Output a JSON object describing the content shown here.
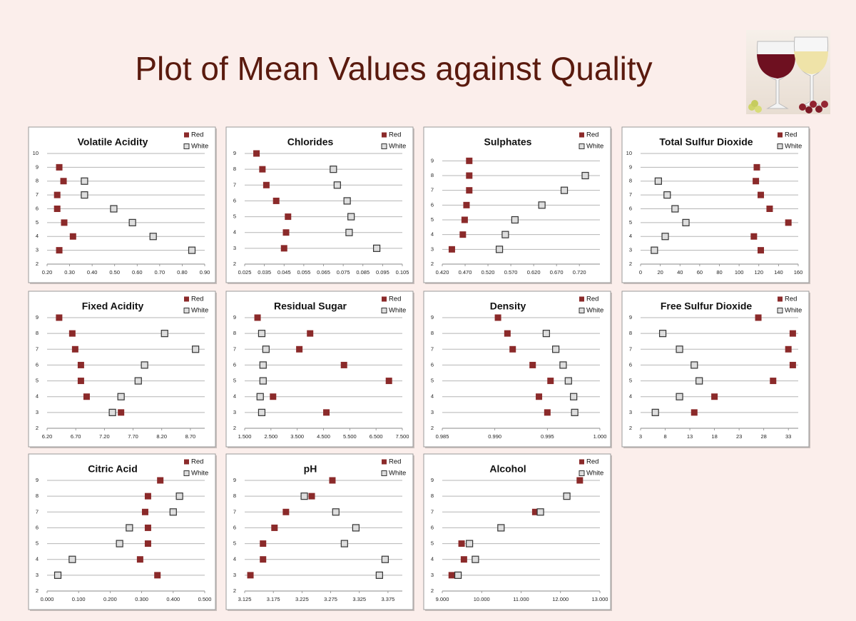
{
  "title": "Plot of Mean Values against Quality",
  "chart_data": [
    {
      "type": "scatter",
      "title": "Volatile Acidity",
      "grid": true,
      "xlim": [
        0.2,
        0.9
      ],
      "ylim": [
        2,
        10
      ],
      "xticks": [
        {
          "value": 0.2,
          "label": "0.20"
        },
        {
          "value": 0.3,
          "label": "0.30"
        },
        {
          "value": 0.4,
          "label": "0.40"
        },
        {
          "value": 0.5,
          "label": "0.50"
        },
        {
          "value": 0.6,
          "label": "0.60"
        },
        {
          "value": 0.7,
          "label": "0.70"
        },
        {
          "value": 0.8,
          "label": "0.80"
        },
        {
          "value": 0.9,
          "label": "0.90"
        }
      ],
      "yticks": [
        2,
        3,
        4,
        5,
        6,
        7,
        8,
        9,
        10
      ],
      "series": [
        {
          "name": "Red",
          "color": "#8b2a2a",
          "x": [
            0.254,
            0.273,
            0.245,
            0.245,
            0.276,
            0.315,
            0.254
          ],
          "values": [
            9,
            8,
            7,
            6,
            5,
            4,
            3
          ]
        },
        {
          "name": "White",
          "color": "#dddddd",
          "x": [
            0.366,
            0.366,
            0.496,
            0.579,
            0.671,
            0.843
          ],
          "values": [
            8,
            7,
            6,
            5,
            4,
            3
          ]
        }
      ]
    },
    {
      "type": "scatter",
      "title": "Chlorides",
      "grid": true,
      "xlim": [
        0.025,
        0.105
      ],
      "ylim": [
        2,
        9
      ],
      "xticks": [
        0.025,
        0.035,
        0.045,
        0.055,
        0.065,
        0.075,
        0.085,
        0.095,
        0.105
      ],
      "yticks": [
        2,
        3,
        4,
        5,
        6,
        7,
        8,
        9
      ],
      "series": [
        {
          "name": "Red",
          "color": "#8b2a2a",
          "x": [
            0.031,
            0.034,
            0.036,
            0.041,
            0.047,
            0.046,
            0.045
          ],
          "values": [
            9,
            8,
            7,
            6,
            5,
            4,
            3
          ]
        },
        {
          "name": "White",
          "color": "#dddddd",
          "x": [
            0.07,
            0.072,
            0.077,
            0.079,
            0.078,
            0.092
          ],
          "values": [
            8,
            7,
            6,
            5,
            4,
            3
          ]
        }
      ]
    },
    {
      "type": "scatter",
      "title": "Sulphates",
      "grid": true,
      "xlim": [
        0.42,
        0.765
      ],
      "ylim": [
        2,
        9.5
      ],
      "xticks": [
        {
          "value": 0.42,
          "label": "0.420"
        },
        {
          "value": 0.47,
          "label": "0.470"
        },
        {
          "value": 0.52,
          "label": "0.520"
        },
        {
          "value": 0.57,
          "label": "0.570"
        },
        {
          "value": 0.62,
          "label": "0.620"
        },
        {
          "value": 0.67,
          "label": "0.670"
        },
        {
          "value": 0.72,
          "label": "0.720"
        }
      ],
      "yticks": [
        2,
        3,
        4,
        5,
        6,
        7,
        8,
        9
      ],
      "series": [
        {
          "name": "Red",
          "color": "#8b2a2a",
          "x": [
            0.479,
            0.479,
            0.479,
            0.473,
            0.469,
            0.465,
            0.441
          ],
          "values": [
            9,
            8,
            7,
            6,
            5,
            4,
            3
          ]
        },
        {
          "name": "White",
          "color": "#dddddd",
          "x": [
            0.733,
            0.687,
            0.638,
            0.579,
            0.558,
            0.545
          ],
          "values": [
            8,
            7,
            6,
            5,
            4,
            3
          ]
        }
      ]
    },
    {
      "type": "scatter",
      "title": "Total Sulfur Dioxide",
      "grid": true,
      "xlim": [
        0,
        160
      ],
      "ylim": [
        2,
        10
      ],
      "xticks": [
        0,
        20,
        40,
        60,
        80,
        100,
        120,
        140,
        160
      ],
      "yticks": [
        2,
        3,
        4,
        5,
        6,
        7,
        8,
        9,
        10
      ],
      "series": [
        {
          "name": "Red",
          "color": "#8b2a2a",
          "x": [
            118,
            117,
            122,
            131,
            150,
            115,
            122
          ],
          "values": [
            9,
            8,
            7,
            6,
            5,
            4,
            3
          ]
        },
        {
          "name": "White",
          "color": "#dddddd",
          "x": [
            18,
            27,
            35,
            46,
            25,
            14
          ],
          "values": [
            8,
            7,
            6,
            5,
            4,
            3
          ]
        }
      ]
    },
    {
      "type": "scatter",
      "title": "Fixed Acidity",
      "grid": true,
      "xlim": [
        6.2,
        8.95
      ],
      "ylim": [
        2,
        9
      ],
      "xticks": [
        {
          "value": 6.2,
          "label": "6.20"
        },
        {
          "value": 6.7,
          "label": "6.70"
        },
        {
          "value": 7.2,
          "label": "7.20"
        },
        {
          "value": 7.7,
          "label": "7.70"
        },
        {
          "value": 8.2,
          "label": "8.20"
        },
        {
          "value": 8.7,
          "label": "8.70"
        }
      ],
      "yticks": [
        2,
        3,
        4,
        5,
        6,
        7,
        8,
        9
      ],
      "series": [
        {
          "name": "Red",
          "color": "#8b2a2a",
          "x": [
            6.41,
            6.64,
            6.69,
            6.79,
            6.79,
            6.89,
            7.49
          ],
          "values": [
            9,
            8,
            7,
            6,
            5,
            4,
            3
          ]
        },
        {
          "name": "White",
          "color": "#dddddd",
          "x": [
            8.25,
            8.79,
            7.9,
            7.79,
            7.49,
            7.34
          ],
          "values": [
            8,
            7,
            6,
            5,
            4,
            3
          ]
        }
      ]
    },
    {
      "type": "scatter",
      "title": "Residual Sugar",
      "grid": true,
      "xlim": [
        1.5,
        7.5
      ],
      "ylim": [
        2,
        9
      ],
      "xticks": [
        {
          "value": 1.5,
          "label": "1.500"
        },
        {
          "value": 2.5,
          "label": "2.500"
        },
        {
          "value": 3.5,
          "label": "3.500"
        },
        {
          "value": 4.5,
          "label": "4.500"
        },
        {
          "value": 5.5,
          "label": "5.500"
        },
        {
          "value": 6.5,
          "label": "6.500"
        },
        {
          "value": 7.5,
          "label": "7.500"
        }
      ],
      "yticks": [
        2,
        3,
        4,
        5,
        6,
        7,
        8,
        9
      ],
      "series": [
        {
          "name": "Red",
          "color": "#8b2a2a",
          "x": [
            1.99,
            3.99,
            3.58,
            5.28,
            6.99,
            2.58,
            4.61
          ],
          "values": [
            9,
            8,
            7,
            6,
            5,
            4,
            3
          ]
        },
        {
          "name": "White",
          "color": "#dddddd",
          "x": [
            2.15,
            2.31,
            2.2,
            2.2,
            2.09,
            2.15
          ],
          "values": [
            8,
            7,
            6,
            5,
            4,
            3
          ]
        }
      ]
    },
    {
      "type": "scatter",
      "title": "Density",
      "grid": true,
      "xlim": [
        0.985,
        1
      ],
      "ylim": [
        2,
        9
      ],
      "xticks": [
        0.985,
        {
          "value": 0.99,
          "label": "0.990"
        },
        0.995,
        {
          "value": 1,
          "label": "1.000"
        }
      ],
      "yticks": [
        2,
        3,
        4,
        5,
        6,
        7,
        8,
        9
      ],
      "series": [
        {
          "name": "Red",
          "color": "#8b2a2a",
          "x": [
            0.9903,
            0.9912,
            0.9917,
            0.9936,
            0.9953,
            0.9942,
            0.995
          ],
          "values": [
            9,
            8,
            7,
            6,
            5,
            4,
            3
          ]
        },
        {
          "name": "White",
          "color": "#dddddd",
          "x": [
            0.9949,
            0.9958,
            0.9965,
            0.997,
            0.9975,
            0.9976
          ],
          "values": [
            8,
            7,
            6,
            5,
            4,
            3
          ]
        }
      ]
    },
    {
      "type": "scatter",
      "title": "Free Sulfur Dioxide",
      "grid": true,
      "xlim": [
        3,
        35
      ],
      "ylim": [
        2,
        9
      ],
      "xticks": [
        3,
        8,
        13,
        18,
        23,
        28,
        33
      ],
      "yticks": [
        2,
        3,
        4,
        5,
        6,
        7,
        8,
        9
      ],
      "series": [
        {
          "name": "Red",
          "color": "#8b2a2a",
          "x": [
            26.9,
            33.9,
            33.0,
            33.9,
            29.9,
            18.0,
            13.9
          ],
          "values": [
            9,
            8,
            7,
            6,
            5,
            4,
            3
          ]
        },
        {
          "name": "White",
          "color": "#dddddd",
          "x": [
            7.5,
            10.9,
            13.9,
            14.9,
            10.9,
            6.0
          ],
          "values": [
            8,
            7,
            6,
            5,
            4,
            3
          ]
        }
      ]
    },
    {
      "type": "scatter",
      "title": "Citric Acid",
      "grid": true,
      "xlim": [
        0,
        0.5
      ],
      "ylim": [
        2,
        9
      ],
      "xticks": [
        {
          "value": 0,
          "label": "0.000"
        },
        {
          "value": 0.1,
          "label": "0.100"
        },
        {
          "value": 0.2,
          "label": "0.200"
        },
        {
          "value": 0.3,
          "label": "0.300"
        },
        {
          "value": 0.4,
          "label": "0.400"
        },
        {
          "value": 0.5,
          "label": "0.500"
        }
      ],
      "yticks": [
        2,
        3,
        4,
        5,
        6,
        7,
        8,
        9
      ],
      "series": [
        {
          "name": "Red",
          "color": "#8b2a2a",
          "x": [
            0.359,
            0.32,
            0.311,
            0.32,
            0.32,
            0.295,
            0.35
          ],
          "values": [
            9,
            8,
            7,
            6,
            5,
            4,
            3
          ]
        },
        {
          "name": "White",
          "color": "#dddddd",
          "x": [
            0.42,
            0.4,
            0.261,
            0.23,
            0.08,
            0.034
          ],
          "values": [
            8,
            7,
            6,
            5,
            4,
            3
          ]
        }
      ]
    },
    {
      "type": "scatter",
      "title": "pH",
      "grid": true,
      "xlim": [
        3.125,
        3.4
      ],
      "ylim": [
        2,
        9
      ],
      "xticks": [
        3.125,
        3.175,
        3.225,
        3.275,
        3.325,
        3.375
      ],
      "yticks": [
        2,
        3,
        4,
        5,
        6,
        7,
        8,
        9
      ],
      "series": [
        {
          "name": "Red",
          "color": "#8b2a2a",
          "x": [
            3.278,
            3.242,
            3.197,
            3.177,
            3.157,
            3.157,
            3.135
          ],
          "values": [
            9,
            8,
            7,
            6,
            5,
            4,
            3
          ]
        },
        {
          "name": "White",
          "color": "#dddddd",
          "x": [
            3.229,
            3.284,
            3.319,
            3.299,
            3.37,
            3.36
          ],
          "values": [
            8,
            7,
            6,
            5,
            4,
            3
          ]
        }
      ]
    },
    {
      "type": "scatter",
      "title": "Alcohol",
      "grid": true,
      "xlim": [
        9,
        13
      ],
      "ylim": [
        2,
        9
      ],
      "xticks": [
        {
          "value": 9,
          "label": "9.000"
        },
        {
          "value": 10,
          "label": "10.000"
        },
        {
          "value": 11,
          "label": "11.000"
        },
        {
          "value": 12,
          "label": "12.000"
        },
        {
          "value": 13,
          "label": "13.000"
        }
      ],
      "yticks": [
        2,
        3,
        4,
        5,
        6,
        7,
        8,
        9
      ],
      "series": [
        {
          "name": "Red",
          "color": "#8b2a2a",
          "x": [
            12.49,
            12.16,
            11.36,
            10.49,
            9.49,
            9.55,
            9.24
          ],
          "values": [
            9,
            8,
            7,
            6,
            5,
            4,
            3
          ]
        },
        {
          "name": "White",
          "color": "#dddddd",
          "x": [
            12.16,
            11.49,
            10.49,
            9.69,
            9.84,
            9.4
          ],
          "values": [
            8,
            7,
            6,
            5,
            4,
            3
          ]
        }
      ]
    }
  ]
}
